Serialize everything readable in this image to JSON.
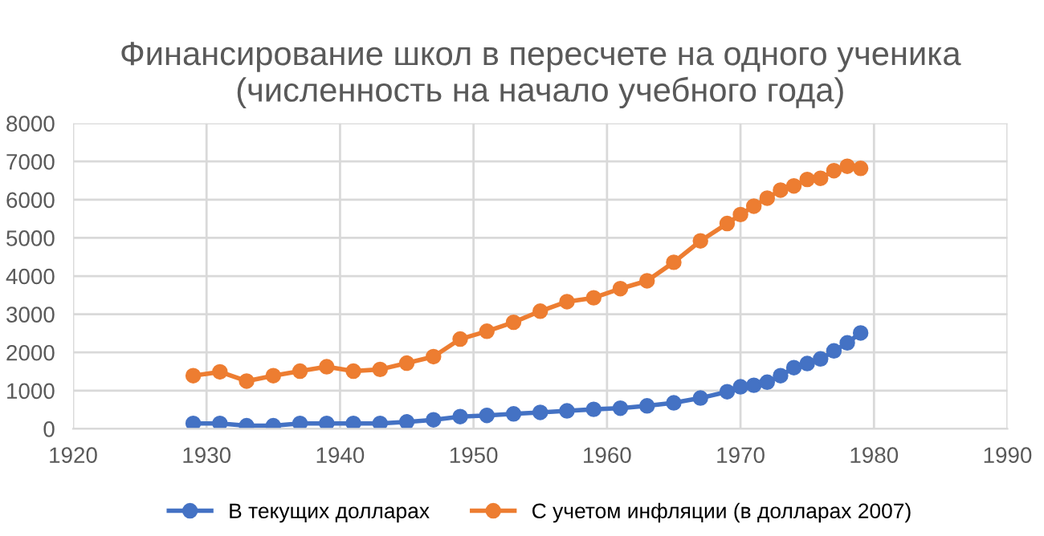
{
  "chart_data": {
    "type": "line",
    "title": "Финансирование школ в пересчете на одного ученика (численность на начало учебного года)",
    "x": [
      1929,
      1931,
      1933,
      1935,
      1937,
      1939,
      1941,
      1943,
      1945,
      1947,
      1949,
      1951,
      1953,
      1955,
      1957,
      1959,
      1961,
      1963,
      1965,
      1967,
      1969,
      1970,
      1971,
      1972,
      1973,
      1974,
      1975,
      1976,
      1977,
      1978,
      1979
    ],
    "series": [
      {
        "name": "В текущих долларах",
        "color": "#4472c4",
        "values": [
          140,
          140,
          80,
          80,
          140,
          140,
          140,
          140,
          180,
          235,
          320,
          350,
          390,
          430,
          470,
          510,
          540,
          600,
          680,
          805,
          970,
          1100,
          1140,
          1220,
          1390,
          1600,
          1710,
          1830,
          2040,
          2250,
          2510
        ]
      },
      {
        "name": "С учетом инфляции (в долларах 2007)",
        "color": "#ed7d31",
        "values": [
          1390,
          1490,
          1250,
          1390,
          1510,
          1625,
          1510,
          1555,
          1720,
          1890,
          2350,
          2555,
          2790,
          3080,
          3330,
          3430,
          3670,
          3875,
          4360,
          4920,
          5375,
          5610,
          5830,
          6040,
          6250,
          6360,
          6530,
          6560,
          6760,
          6875,
          6820
        ]
      }
    ],
    "xlim": [
      1920,
      1990
    ],
    "xticks": [
      1920,
      1930,
      1940,
      1950,
      1960,
      1970,
      1980,
      1990
    ],
    "ylim": [
      0,
      8000
    ],
    "yticks": [
      0,
      1000,
      2000,
      3000,
      4000,
      5000,
      6000,
      7000,
      8000
    ],
    "grid": true,
    "legend": "bottom",
    "marker": "circle",
    "line_style": "solid"
  }
}
